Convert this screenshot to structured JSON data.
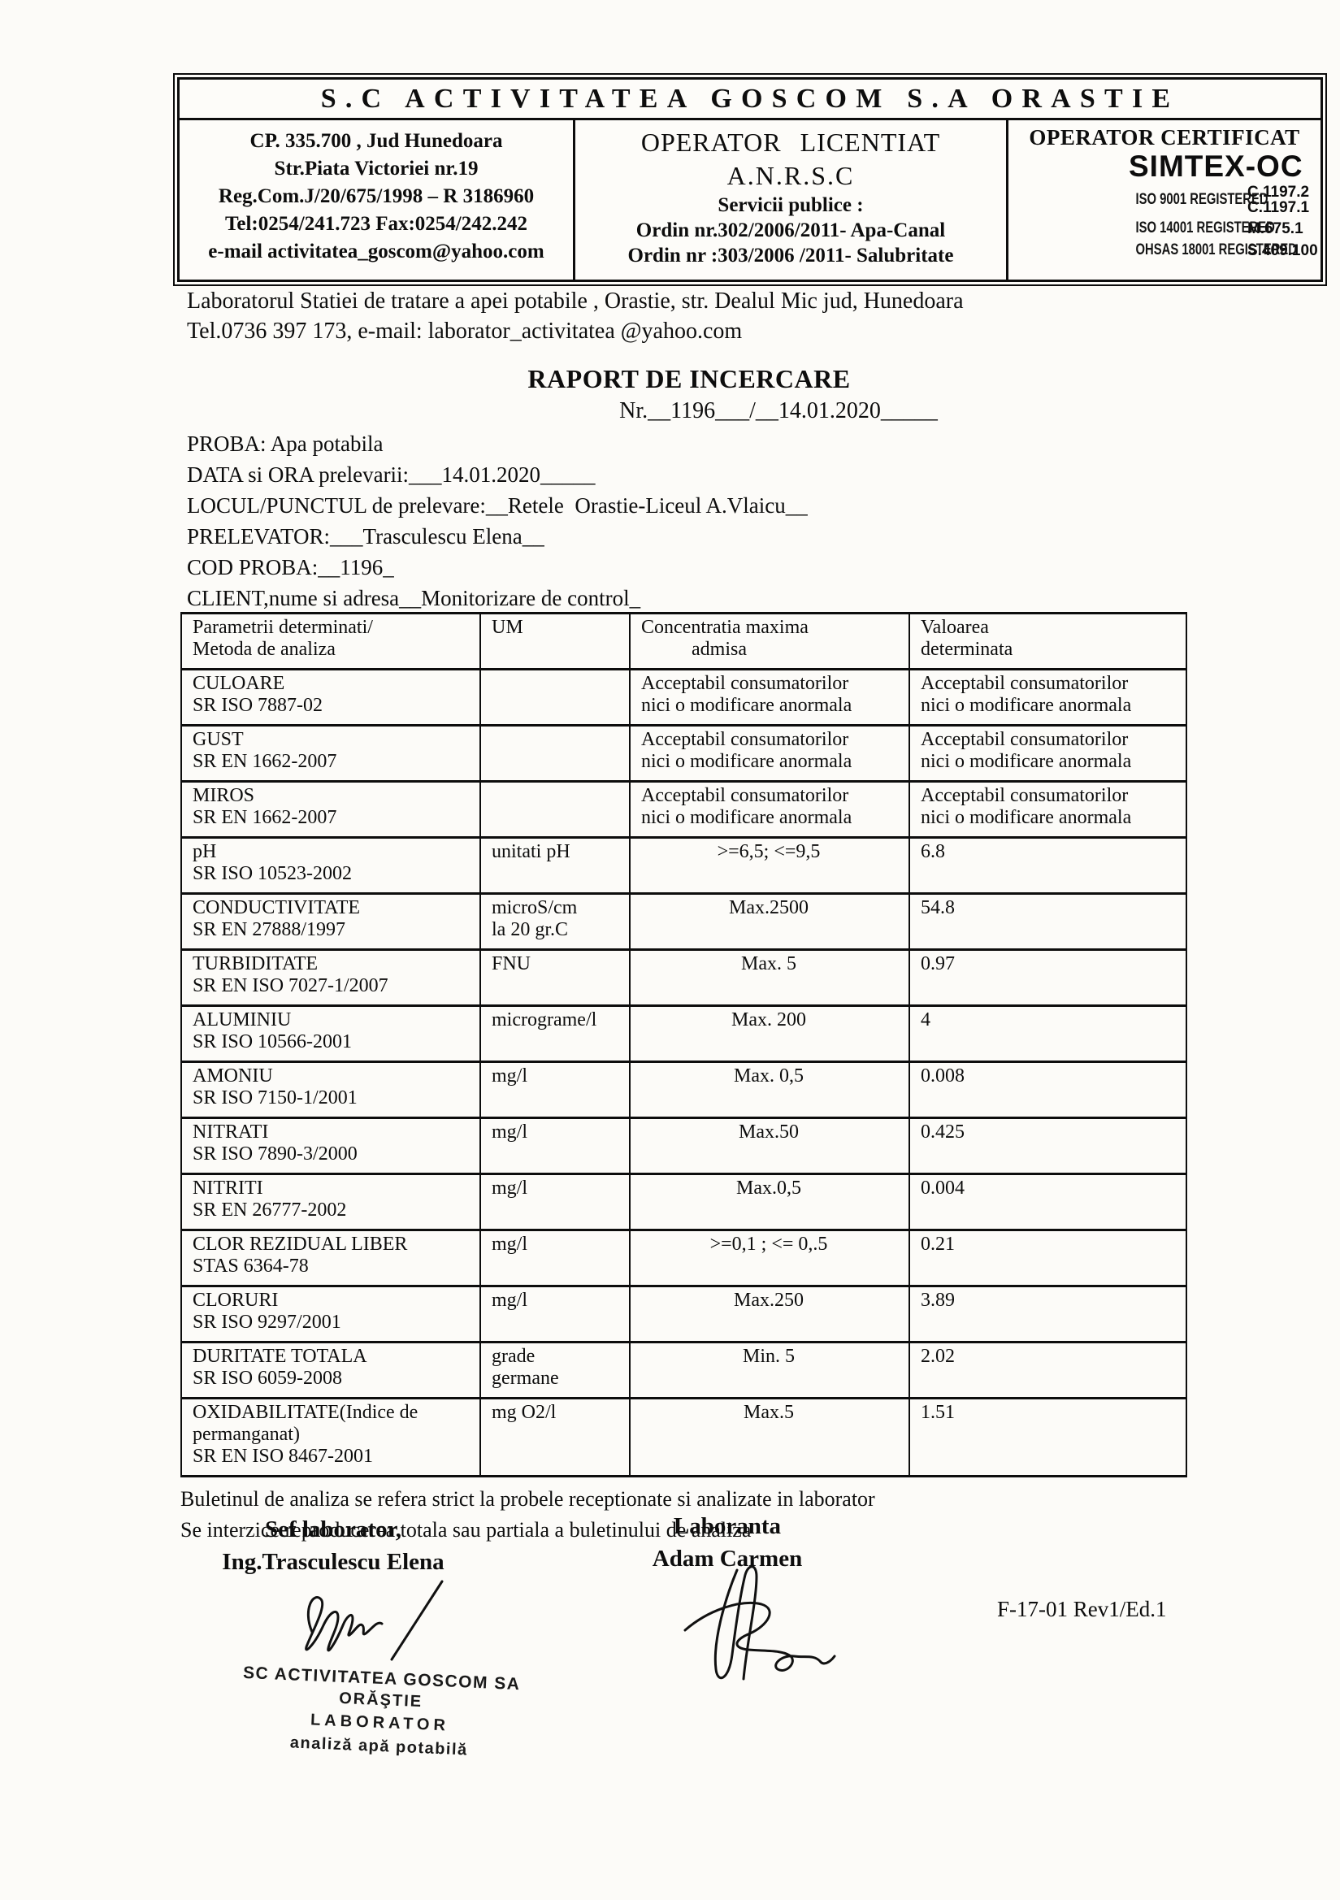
{
  "colors": {
    "ink": "#0d0d0d",
    "paper": "#fcfbf8"
  },
  "header": {
    "company_title": "S.C ACTIVITATEA GOSCOM S.A ORASTIE",
    "left": [
      "CP. 335.700 , Jud Hunedoara",
      "Str.Piata Victoriei nr.19",
      "Reg.Com.J/20/675/1998 – R 3186960",
      "Tel:0254/241.723 Fax:0254/242.242",
      "e-mail activitatea_goscom@yahoo.com"
    ],
    "middle": [
      "OPERATOR LICENTIAT",
      "A.N.R.S.C",
      "Servicii publice :",
      "Ordin nr.302/2006/2011- Apa-Canal",
      "Ordin nr :303/2006 /2011- Salubritate"
    ],
    "right": {
      "title": "OPERATOR CERTIFICAT",
      "brand": "SIMTEX-OC",
      "certs": [
        {
          "label": "ISO 9001 REGISTERED",
          "codes": [
            "C.1197.2",
            "C.1197.1"
          ]
        },
        {
          "label": "ISO 14001 REGISTERED",
          "codes": [
            "M.675.1"
          ]
        },
        {
          "label": "OHSAS 18001 REGISTERED",
          "codes": [
            "S.409.100"
          ]
        }
      ]
    }
  },
  "lab": {
    "lines": [
      "Laboratorul Statiei de tratare a apei potabile , Orastie, str. Dealul Mic jud, Hunedoara",
      "Tel.0736 397 173, e-mail: laborator_activitatea @yahoo.com"
    ]
  },
  "report": {
    "title": "RAPORT DE INCERCARE",
    "number_line": "Nr.__1196___/__14.01.2020_____"
  },
  "sample": {
    "lines": [
      "PROBA: Apa potabila",
      "DATA si ORA prelevarii:___14.01.2020_____",
      "LOCUL/PUNCTUL de prelevare:__Retele  Orastie-Liceul A.Vlaicu__",
      "PRELEVATOR:___Trasculescu Elena__",
      "COD PROBA:__1196_",
      "CLIENT,nume si adresa__Monitorizare de control_"
    ]
  },
  "table": {
    "headers": {
      "param": [
        "Parametrii determinati/",
        "Metoda de analiza"
      ],
      "um": [
        "UM"
      ],
      "cma": [
        "Concentratia maxima",
        "admisa"
      ],
      "val": [
        "Valoarea",
        "determinata"
      ]
    },
    "rows": [
      {
        "param": [
          "CULOARE",
          "SR ISO 7887-02"
        ],
        "um": [],
        "cma": [
          "Acceptabil consumatorilor",
          "nici o modificare anormala"
        ],
        "val": [
          "Acceptabil consumatorilor",
          "nici o modificare anormala"
        ]
      },
      {
        "param": [
          "GUST",
          "SR EN 1662-2007"
        ],
        "um": [],
        "cma": [
          "Acceptabil consumatorilor",
          "nici o modificare anormala"
        ],
        "val": [
          "Acceptabil consumatorilor",
          "nici o modificare anormala"
        ]
      },
      {
        "param": [
          "MIROS",
          "SR EN 1662-2007"
        ],
        "um": [],
        "cma": [
          "Acceptabil consumatorilor",
          "nici o modificare anormala"
        ],
        "val": [
          "Acceptabil consumatorilor",
          "nici o modificare anormala"
        ]
      },
      {
        "param": [
          "pH",
          "SR ISO 10523-2002"
        ],
        "um": [
          "unitati pH"
        ],
        "cma": [
          ">=6,5; <=9,5"
        ],
        "val": [
          "6.8"
        ]
      },
      {
        "param": [
          "CONDUCTIVITATE",
          "SR EN 27888/1997"
        ],
        "um": [
          "microS/cm",
          "la 20 gr.C"
        ],
        "cma": [
          "Max.2500"
        ],
        "val": [
          "54.8"
        ]
      },
      {
        "param": [
          "TURBIDITATE",
          "SR EN ISO 7027-1/2007"
        ],
        "um": [
          "FNU"
        ],
        "cma": [
          "Max. 5"
        ],
        "val": [
          "0.97"
        ]
      },
      {
        "param": [
          "ALUMINIU",
          "SR ISO 10566-2001"
        ],
        "um": [
          "micrograme/l"
        ],
        "cma": [
          "Max. 200"
        ],
        "val": [
          "4"
        ]
      },
      {
        "param": [
          "AMONIU",
          "SR ISO 7150-1/2001"
        ],
        "um": [
          "mg/l"
        ],
        "cma": [
          "Max. 0,5"
        ],
        "val": [
          "0.008"
        ]
      },
      {
        "param": [
          "NITRATI",
          "SR ISO 7890-3/2000"
        ],
        "um": [
          "mg/l"
        ],
        "cma": [
          "Max.50"
        ],
        "val": [
          "0.425"
        ]
      },
      {
        "param": [
          "NITRITI",
          "SR EN 26777-2002"
        ],
        "um": [
          "mg/l"
        ],
        "cma": [
          "Max.0,5"
        ],
        "val": [
          "0.004"
        ]
      },
      {
        "param": [
          "CLOR REZIDUAL LIBER",
          "STAS 6364-78"
        ],
        "um": [
          "mg/l"
        ],
        "cma": [
          ">=0,1 ; <= 0,.5"
        ],
        "val": [
          "0.21"
        ]
      },
      {
        "param": [
          "CLORURI",
          "SR ISO 9297/2001"
        ],
        "um": [
          "mg/l"
        ],
        "cma": [
          "Max.250"
        ],
        "val": [
          "3.89"
        ]
      },
      {
        "param": [
          "DURITATE TOTALA",
          "SR ISO 6059-2008"
        ],
        "um": [
          "grade",
          "germane"
        ],
        "cma": [
          "Min. 5"
        ],
        "val": [
          "2.02"
        ]
      },
      {
        "param": [
          "OXIDABILITATE(Indice de",
          "permanganat)",
          "SR EN ISO 8467-2001"
        ],
        "um": [
          "mg O2/l"
        ],
        "cma": [
          "Max.5"
        ],
        "val": [
          "1.51"
        ]
      }
    ]
  },
  "notes": [
    "Buletinul de analiza se refera strict la probele receptionate si analizate in laborator",
    "Se interzice reproducerea totala sau partiala a buletinului de analiza"
  ],
  "signatures": {
    "sef": {
      "role": "Sef laborator,",
      "name": "Ing.Trasculescu Elena"
    },
    "laboranta": {
      "role": "Laboranta",
      "name": "Adam Carmen"
    }
  },
  "form_code": "F-17-01 Rev1/Ed.1",
  "stamp_lines": [
    "SC ACTIVITATEA GOSCOM SA",
    "ORĂŞTIE",
    "LABORATOR",
    "analiză apă potabilă"
  ]
}
